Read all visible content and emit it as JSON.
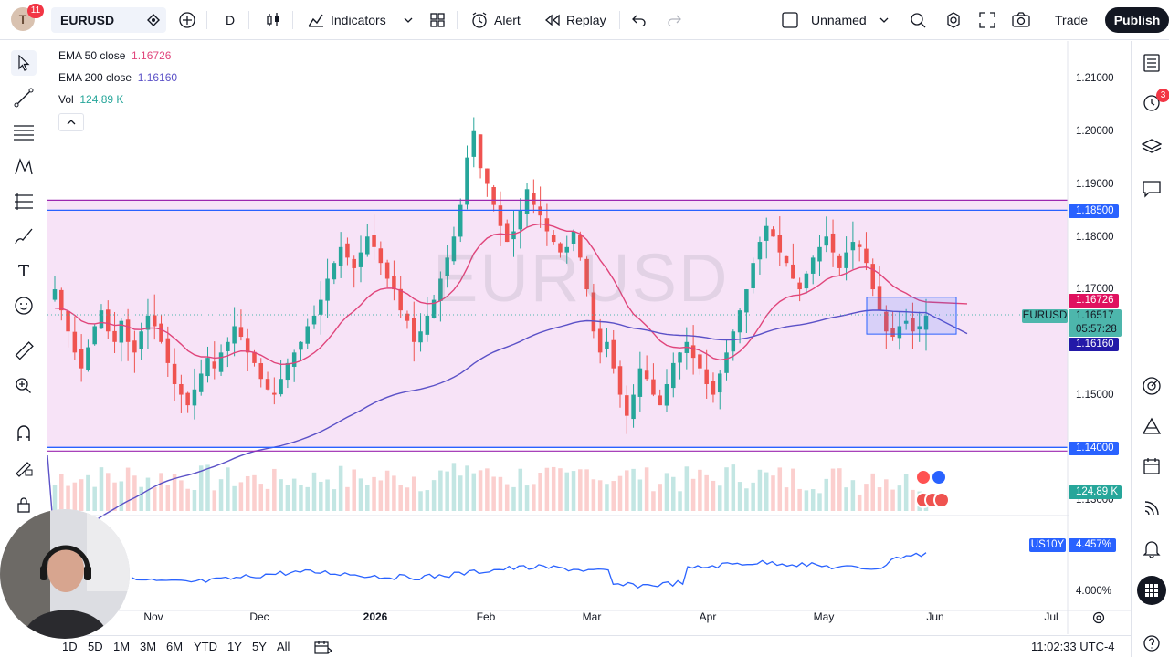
{
  "topbar": {
    "avatar_letter": "T",
    "avatar_badge": "11",
    "symbol": "EURUSD",
    "interval": "D",
    "indicators": "Indicators",
    "alert": "Alert",
    "replay": "Replay",
    "layout_name": "Unnamed",
    "trade": "Trade",
    "publish": "Publish"
  },
  "legend": {
    "ema50_label": "EMA 50 close",
    "ema50_value": "1.16726",
    "ema200_label": "EMA 200 close",
    "ema200_value": "1.16160",
    "vol_label": "Vol",
    "vol_value": "124.89 K"
  },
  "watermark": "EURUSD",
  "yaxis": [
    "1.21000",
    "1.20000",
    "1.19000",
    "1.18000",
    "1.17000",
    "1.15000",
    "1.13000"
  ],
  "price_tags": {
    "upper_line": "1.18500",
    "ema50": "1.16726",
    "symbol_label": "EURUSD",
    "last_price": "1.16517",
    "countdown": "05:57:28",
    "ema200": "1.16160",
    "lower_line": "1.14000",
    "volume": "124.89 K"
  },
  "compare": {
    "symbol": "US10Y",
    "value": "4.457%",
    "axis_label": "4.000%"
  },
  "xaxis": [
    "Nov",
    "Dec",
    "2026",
    "Feb",
    "Mar",
    "Apr",
    "May",
    "Jun",
    "Jul"
  ],
  "timeframes": [
    "1D",
    "5D",
    "1M",
    "3M",
    "6M",
    "YTD",
    "1Y",
    "5Y",
    "All"
  ],
  "clock": "11:02:33 UTC-4",
  "right_badge": "3",
  "colors": {
    "ema50": "#e0457b",
    "ema200": "#5b51c7",
    "bull": "#26a69a",
    "bear": "#ef5350",
    "range_fill": "#f7e3f7",
    "upper_line": "#2962ff",
    "us10y": "#2962ff"
  },
  "chart_data": {
    "type": "candlestick",
    "symbol": "EURUSD",
    "ylim": [
      1.13,
      1.215
    ],
    "horizontal_levels": [
      1.185,
      1.14
    ],
    "ema50_last": 1.16726,
    "ema200_last": 1.1616,
    "last_close": 1.16517,
    "closes": [
      1.17,
      1.166,
      1.162,
      1.158,
      1.155,
      1.159,
      1.163,
      1.166,
      1.162,
      1.16,
      1.164,
      1.16,
      1.158,
      1.162,
      1.165,
      1.163,
      1.16,
      1.156,
      1.152,
      1.15,
      1.148,
      1.151,
      1.154,
      1.157,
      1.155,
      1.158,
      1.16,
      1.163,
      1.161,
      1.158,
      1.156,
      1.153,
      1.151,
      1.15,
      1.153,
      1.156,
      1.158,
      1.16,
      1.163,
      1.165,
      1.168,
      1.172,
      1.175,
      1.178,
      1.176,
      1.174,
      1.177,
      1.18,
      1.178,
      1.175,
      1.172,
      1.17,
      1.166,
      1.164,
      1.16,
      1.162,
      1.165,
      1.168,
      1.172,
      1.176,
      1.18,
      1.186,
      1.195,
      1.2,
      1.193,
      1.19,
      1.186,
      1.182,
      1.179,
      1.181,
      1.185,
      1.189,
      1.186,
      1.184,
      1.181,
      1.179,
      1.177,
      1.178,
      1.181,
      1.176,
      1.17,
      1.162,
      1.158,
      1.16,
      1.155,
      1.15,
      1.146,
      1.15,
      1.155,
      1.153,
      1.15,
      1.148,
      1.152,
      1.156,
      1.158,
      1.16,
      1.157,
      1.155,
      1.152,
      1.15,
      1.154,
      1.158,
      1.162,
      1.166,
      1.17,
      1.175,
      1.179,
      1.182,
      1.18,
      1.177,
      1.175,
      1.172,
      1.17,
      1.173,
      1.176,
      1.178,
      1.18,
      1.177,
      1.174,
      1.177,
      1.179,
      1.178,
      1.175,
      1.17,
      1.166,
      1.162,
      1.161,
      1.163,
      1.164,
      1.162,
      1.163,
      1.165
    ],
    "us10y_last": 4.457
  }
}
